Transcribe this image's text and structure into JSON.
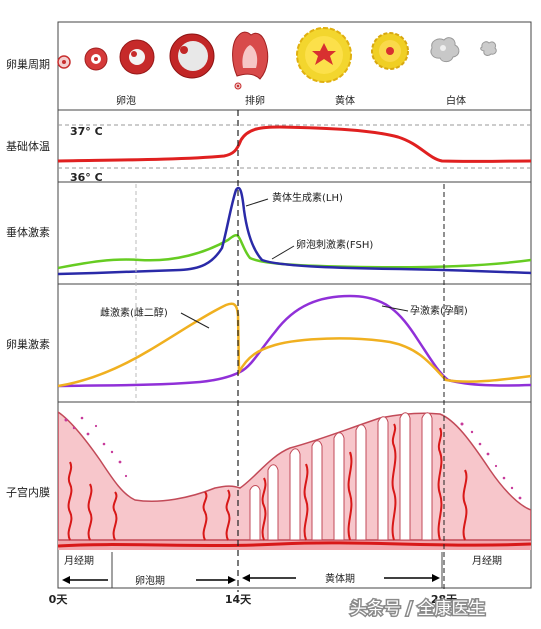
{
  "row_labels": {
    "ovary_cycle": "卵巢周期",
    "basal_temp": "基础体温",
    "pituitary": "垂体激素",
    "ovarian": "卵巢激素",
    "endometrium": "子宫内膜"
  },
  "stage_labels": {
    "follicle": "卵泡",
    "ovulation": "排卵",
    "corpus_luteum": "黄体",
    "corpus_albicans": "白体"
  },
  "temp_labels": {
    "high": "37° C",
    "low": "36° C"
  },
  "hormone_labels": {
    "lh": "黄体生成素(LH)",
    "fsh": "卵泡刺激素(FSH)",
    "estrogen": "雌激素(雌二醇)",
    "progesterone": "孕激素(孕酮)"
  },
  "phase_labels": {
    "menses_start": "月经期",
    "menses_end": "月经期",
    "follicular": "卵泡期",
    "luteal": "黄体期"
  },
  "day_labels": {
    "d0": "0天",
    "d14": "14天",
    "d28": "28天"
  },
  "watermark": "头条号 / 全康医生",
  "colors": {
    "temperature": "#e02020",
    "lh": "#2a2aa8",
    "fsh": "#66cc22",
    "estrogen": "#f0b020",
    "progesterone": "#9030d8",
    "endometrium_fill": "#f7c6cb",
    "vessel": "#d81818"
  }
}
